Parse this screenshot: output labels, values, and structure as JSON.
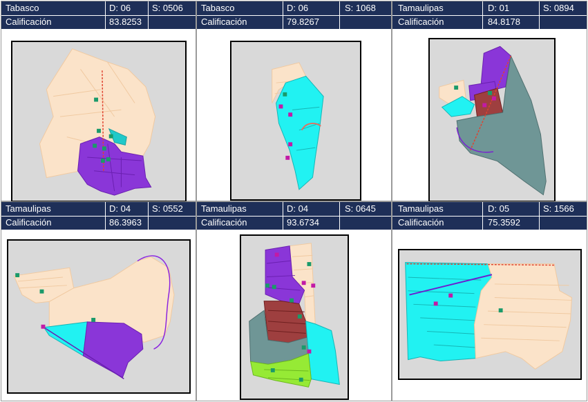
{
  "panels": [
    {
      "state": "Tabasco",
      "d": "D: 06",
      "s": "S: 0506",
      "cal_label": "Calificación",
      "cal_value": "83.8253"
    },
    {
      "state": "Tabasco",
      "d": "D: 06",
      "s": "S: 1068",
      "cal_label": "Calificación",
      "cal_value": "79.8267"
    },
    {
      "state": "Tamaulipas",
      "d": "D: 01",
      "s": "S: 0894",
      "cal_label": "Calificación",
      "cal_value": "84.8178"
    },
    {
      "state": "Tamaulipas",
      "d": "D: 04",
      "s": "S: 0552",
      "cal_label": "Calificación",
      "cal_value": "86.3963"
    },
    {
      "state": "Tamaulipas",
      "d": "D: 04",
      "s": "S: 0645",
      "cal_label": "Calificación",
      "cal_value": "93.6734"
    },
    {
      "state": "Tamaulipas",
      "d": "D: 05",
      "s": "S: 1566",
      "cal_label": "Calificación",
      "cal_value": "75.3592"
    }
  ],
  "colors": {
    "header_bg": "#1e2f58",
    "peach": "#fbe3c9",
    "cyan": "#21f2f2",
    "purple": "#8a36d8",
    "brown": "#9e3f3f",
    "slate": "#6f9696",
    "lime": "#96ea35",
    "map_bg": "#d9d9d9"
  }
}
